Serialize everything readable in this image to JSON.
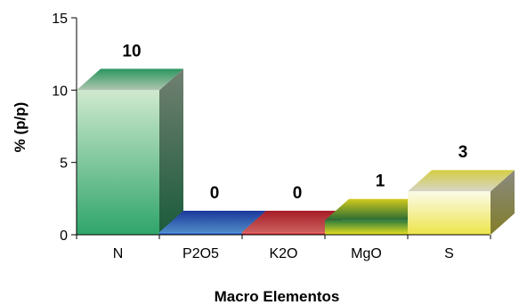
{
  "chart_data": {
    "type": "bar",
    "style": "3d",
    "categories": [
      "N",
      "P2O5",
      "K2O",
      "MgO",
      "S"
    ],
    "values": [
      10,
      0,
      0,
      1,
      3
    ],
    "data_labels": [
      "10",
      "0",
      "0",
      "1",
      "3"
    ],
    "ylabel": "% (p/p)",
    "xlabel": "Macro Elementos",
    "ylim": [
      0,
      15
    ],
    "yticks": [
      "0",
      "5",
      "10",
      "15"
    ],
    "grid": false,
    "legend": "none",
    "colors": {
      "N": [
        "#2fa56a",
        "#cfe9cf"
      ],
      "P2O5": [
        "#1f3fae",
        "#5aa0e6"
      ],
      "K2O": [
        "#b8202a",
        "#ef6f6f"
      ],
      "MgO": [
        "#e8e020",
        "#2f7d3d"
      ],
      "S": [
        "#ede44a",
        "#fbfbe8"
      ]
    }
  }
}
